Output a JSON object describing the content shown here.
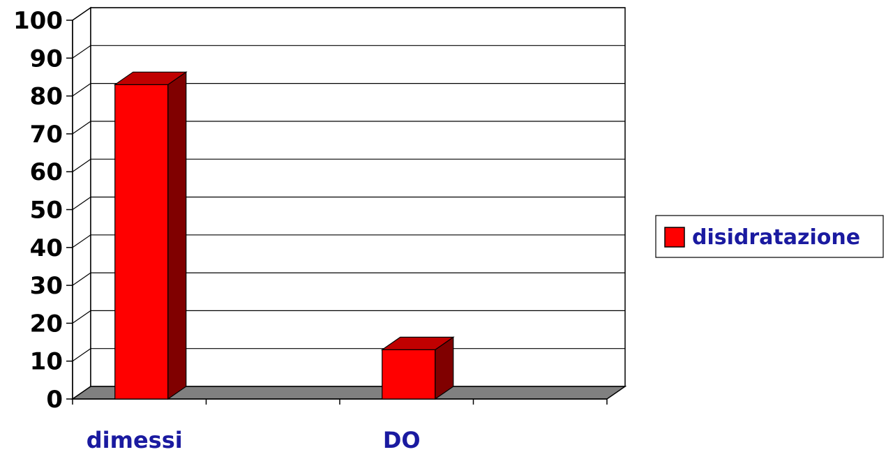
{
  "chart_data": {
    "type": "bar",
    "categories": [
      "dimessi",
      "DO"
    ],
    "series": [
      {
        "name": "disidratazione",
        "values": [
          83,
          13
        ]
      }
    ],
    "ylim": [
      0,
      100
    ],
    "yticks": [
      0,
      10,
      20,
      30,
      40,
      50,
      60,
      70,
      80,
      90,
      100
    ],
    "grid": true,
    "legend_position": "right",
    "colors": {
      "bar_front": "#ff0000",
      "bar_side": "#800000",
      "bar_top": "#c00000",
      "floor": "#808080",
      "category_label": "#1a1aa0"
    }
  }
}
